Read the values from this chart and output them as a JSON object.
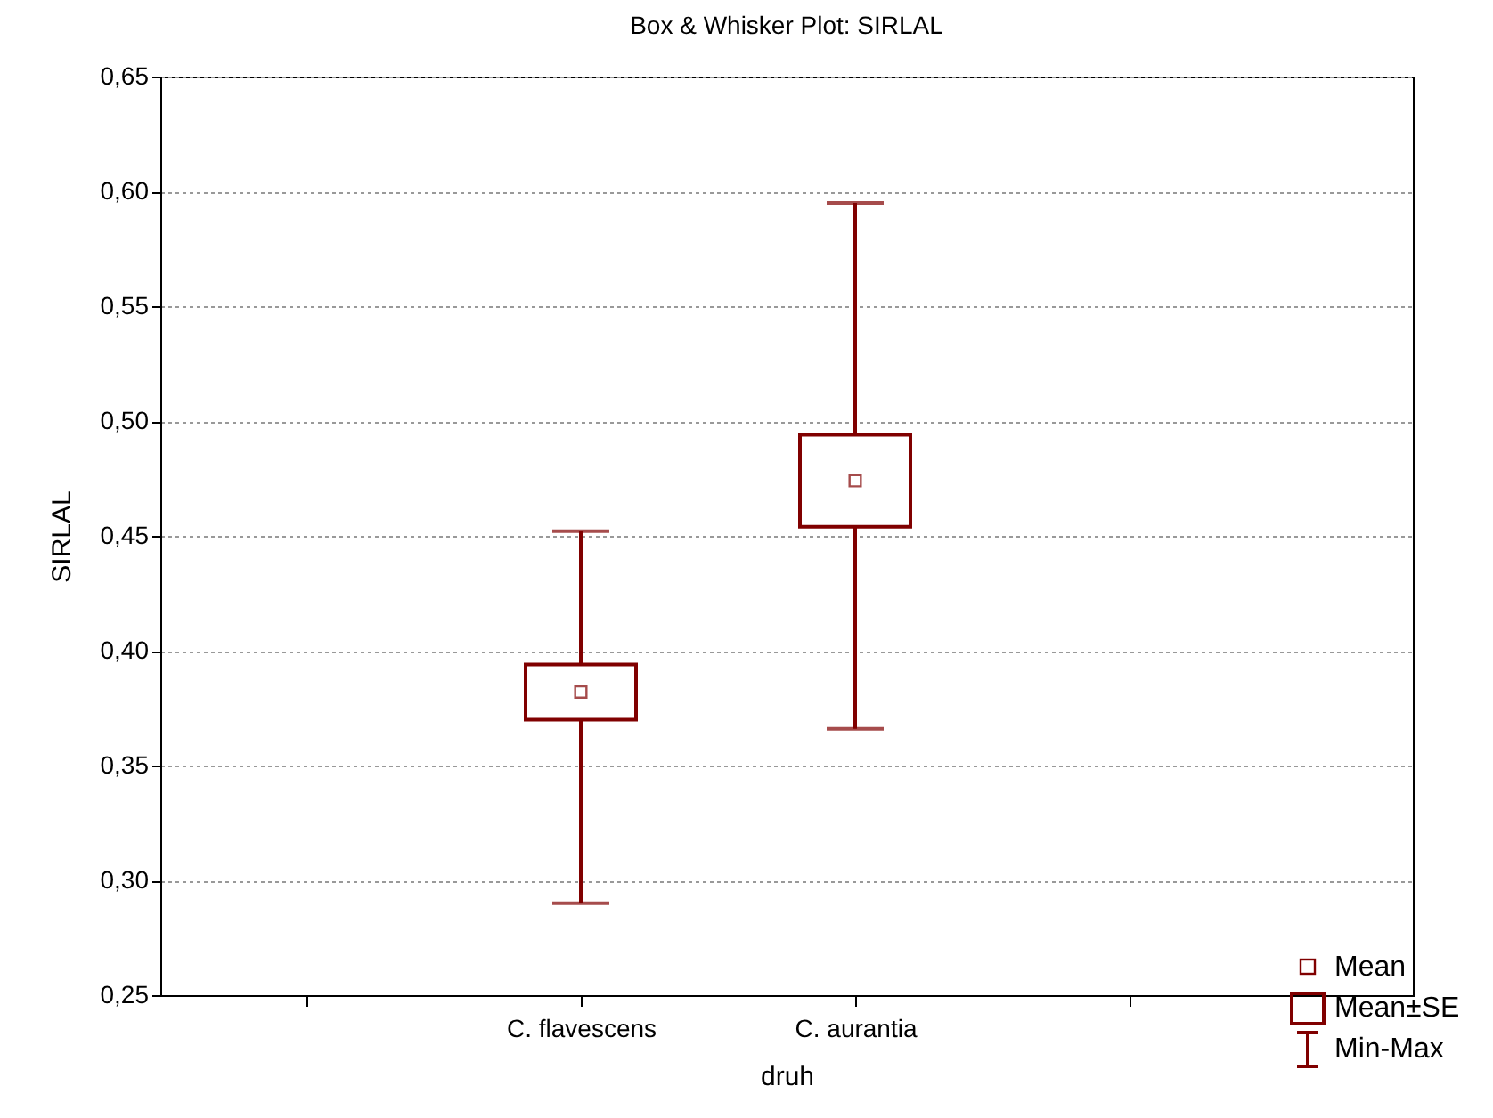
{
  "chart_data": {
    "type": "box",
    "title": "Box & Whisker Plot: SIRLAL",
    "xlabel": "druh",
    "ylabel": "SIRLAL",
    "categories": [
      "C. flavescens",
      "C. aurantia"
    ],
    "boxes": [
      {
        "low": 0.29,
        "q1": 0.37,
        "q3": 0.394,
        "high": 0.452,
        "mean": 0.382
      },
      {
        "low": 0.366,
        "q1": 0.454,
        "q3": 0.494,
        "high": 0.595,
        "mean": 0.474
      }
    ],
    "color": "#800000",
    "marker": "square",
    "grid": "y",
    "ylim": [
      0.25,
      0.65
    ],
    "yticks": [
      {
        "value": 0.25,
        "label": "0,25"
      },
      {
        "value": 0.3,
        "label": "0,30"
      },
      {
        "value": 0.35,
        "label": "0,35"
      },
      {
        "value": 0.4,
        "label": "0,40"
      },
      {
        "value": 0.45,
        "label": "0,45"
      },
      {
        "value": 0.5,
        "label": "0,50"
      },
      {
        "value": 0.55,
        "label": "0,55"
      },
      {
        "value": 0.6,
        "label": "0,60"
      },
      {
        "value": 0.65,
        "label": "0,65"
      }
    ],
    "annotations": [
      "Mean",
      "Mean±SE",
      "Min-Max"
    ]
  }
}
